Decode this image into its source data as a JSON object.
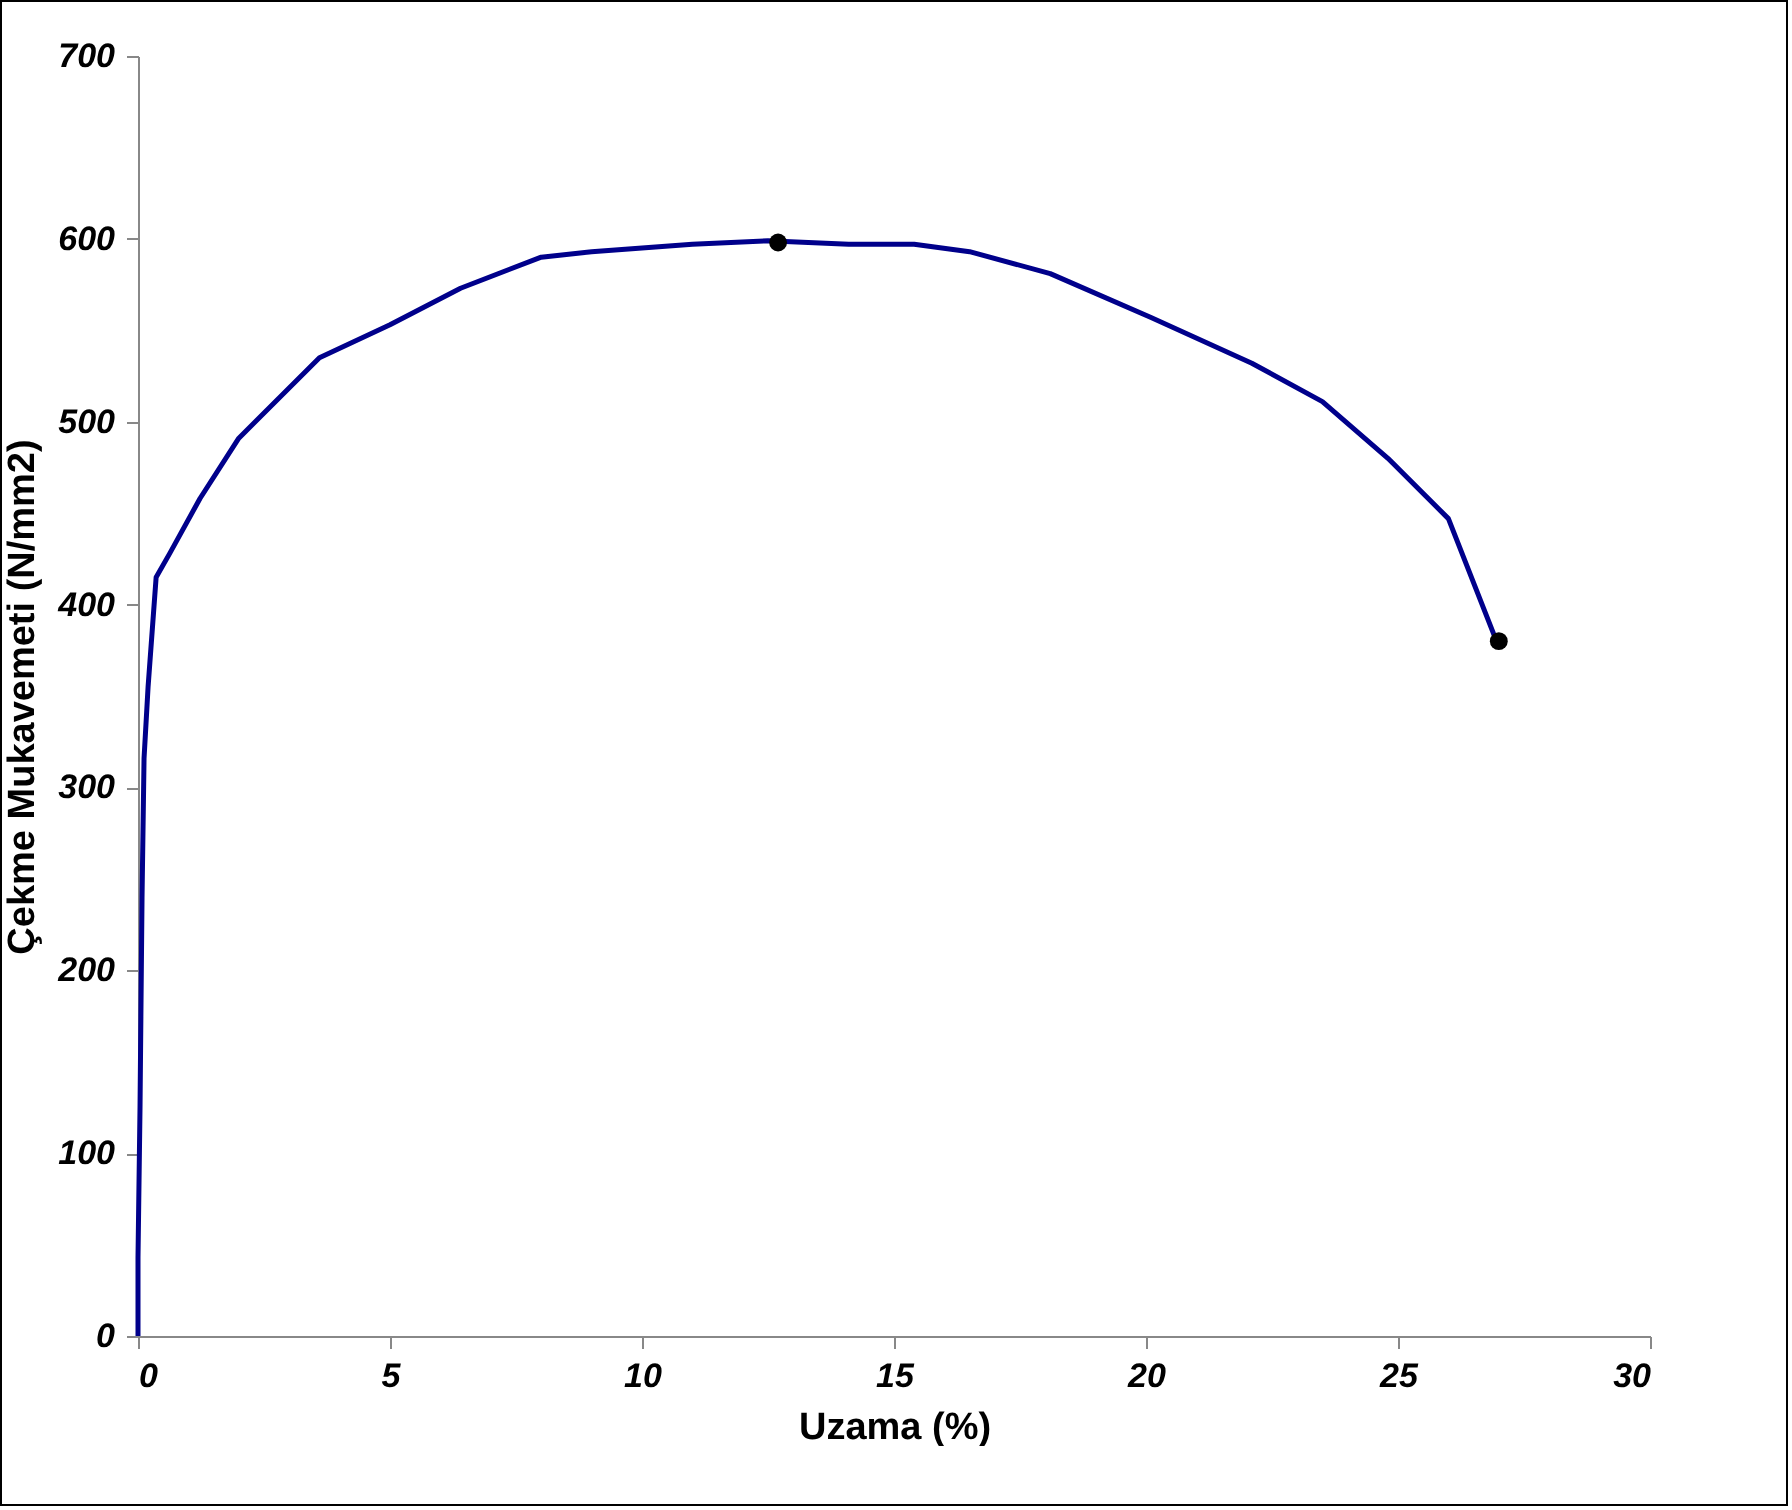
{
  "chart_data": {
    "type": "line",
    "xlabel": "Uzama (%)",
    "ylabel": "Çekme Mukavemeti (N/mm2)",
    "xlim": [
      0,
      30
    ],
    "xticks": [
      0,
      5,
      10,
      15,
      20,
      25,
      30
    ],
    "ylim": [
      0,
      700
    ],
    "yticks": [
      0,
      100,
      200,
      300,
      400,
      500,
      600,
      700
    ],
    "grid": false,
    "series": [
      {
        "color": "#00008b",
        "marker": "none",
        "x": [
          0,
          0,
          0.04,
          0.08,
          0.12,
          0.2,
          0.36,
          0.63,
          1.23,
          2.0,
          3.6,
          5.0,
          6.4,
          8.0,
          9.0,
          11,
          12.5,
          14.1,
          15.4,
          16.5,
          18.1,
          20.1,
          22.1,
          23.5,
          24.8,
          26.0,
          26.94
        ],
        "values": [
          0,
          43,
          125,
          240,
          316,
          355,
          415,
          428,
          458,
          491,
          535,
          553,
          573,
          590,
          593,
          597,
          599,
          597,
          597,
          593,
          581,
          557,
          532,
          511,
          480,
          447,
          381
        ]
      },
      {
        "type": "scatter",
        "color": "#000000",
        "marker": "circle",
        "x": [
          12.7,
          27
        ],
        "values": [
          598,
          380
        ]
      }
    ]
  }
}
